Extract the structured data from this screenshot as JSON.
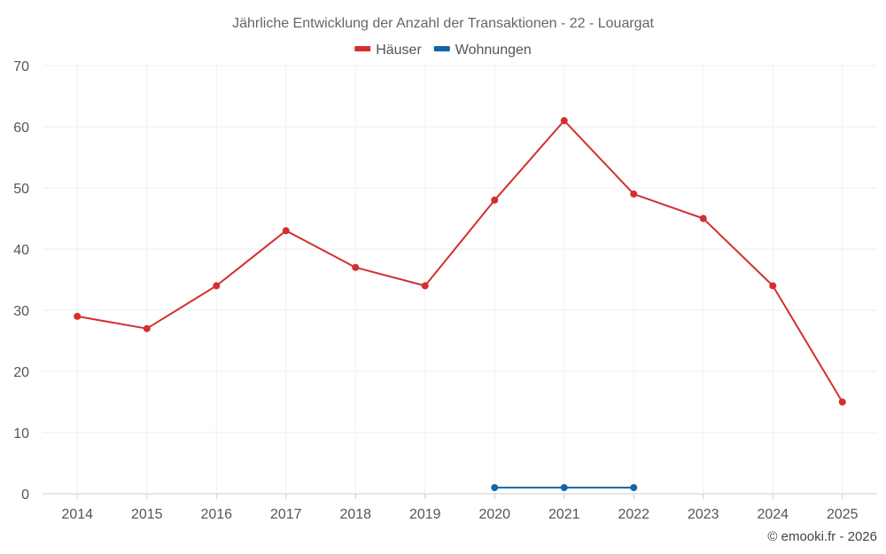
{
  "chart_data": {
    "type": "line",
    "title": "Jährliche Entwicklung der Anzahl der Transaktionen - 22 - Louargat",
    "categories": [
      "2014",
      "2015",
      "2016",
      "2017",
      "2018",
      "2019",
      "2020",
      "2021",
      "2022",
      "2023",
      "2024",
      "2025"
    ],
    "ylim": [
      0,
      70
    ],
    "yticks": [
      0,
      10,
      20,
      30,
      40,
      50,
      60,
      70
    ],
    "grid": true,
    "legend_position": "top-center",
    "series": [
      {
        "name": "Häuser",
        "color": "#d32f2f",
        "values": [
          29,
          27,
          34,
          43,
          37,
          34,
          48,
          61,
          49,
          45,
          34,
          15
        ]
      },
      {
        "name": "Wohnungen",
        "color": "#1565a8",
        "values": [
          null,
          null,
          null,
          null,
          null,
          null,
          1,
          1,
          1,
          null,
          null,
          null
        ]
      }
    ]
  },
  "credit": "© emooki.fr - 2026"
}
